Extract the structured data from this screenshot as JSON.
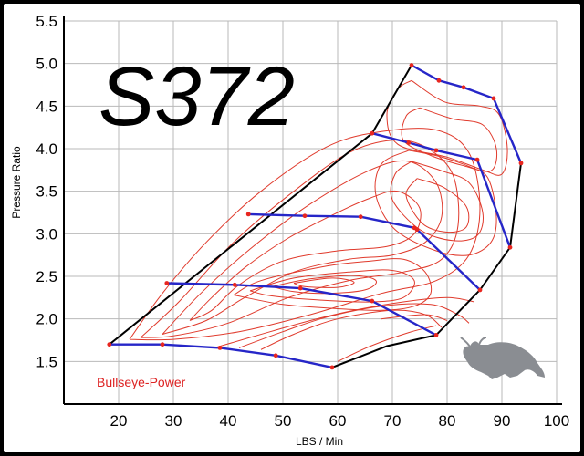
{
  "chart_data": {
    "type": "line",
    "title": "S372",
    "xlabel": "LBS / Min",
    "ylabel": "Pressure Ratio",
    "xlim": [
      10,
      100
    ],
    "ylim": [
      1.0,
      5.5
    ],
    "x_ticks": [
      "20",
      "30",
      "40",
      "50",
      "60",
      "70",
      "80",
      "90",
      "100"
    ],
    "y_ticks": [
      "1.5",
      "2.0",
      "2.5",
      "3.0",
      "3.5",
      "4.0",
      "4.5",
      "5.0",
      "5.5"
    ],
    "grid": true,
    "series": [
      {
        "role": "surge-line",
        "points": [
          [
            18.3,
            1.7
          ],
          [
            66.3,
            4.18
          ],
          [
            73.5,
            4.98
          ]
        ]
      },
      {
        "role": "choke-line",
        "points": [
          [
            93.5,
            3.83
          ],
          [
            91.5,
            2.84
          ],
          [
            86,
            2.34
          ],
          [
            78,
            1.81
          ],
          [
            69,
            1.68
          ],
          [
            59,
            1.43
          ]
        ]
      },
      {
        "role": "speed-line",
        "points": [
          [
            18.3,
            1.7
          ],
          [
            28,
            1.7
          ],
          [
            38.5,
            1.66
          ],
          [
            48.7,
            1.57
          ],
          [
            59,
            1.43
          ]
        ]
      },
      {
        "role": "speed-line",
        "points": [
          [
            28.8,
            2.42
          ],
          [
            41.2,
            2.4
          ],
          [
            53.2,
            2.36
          ],
          [
            66.3,
            2.21
          ],
          [
            78,
            1.81
          ]
        ]
      },
      {
        "role": "speed-line",
        "points": [
          [
            43.7,
            3.23
          ],
          [
            54,
            3.21
          ],
          [
            64.2,
            3.2
          ],
          [
            74,
            3.07
          ],
          [
            74.5,
            3.05
          ],
          [
            86,
            2.34
          ]
        ]
      },
      {
        "role": "speed-line",
        "points": [
          [
            66.3,
            4.18
          ],
          [
            73,
            4.07
          ],
          [
            78,
            3.98
          ],
          [
            85.5,
            3.87
          ],
          [
            91.5,
            2.84
          ]
        ]
      },
      {
        "role": "speed-line",
        "points": [
          [
            73.5,
            4.98
          ],
          [
            78.5,
            4.8
          ],
          [
            83,
            4.72
          ],
          [
            88.5,
            4.59
          ],
          [
            93.5,
            3.83
          ]
        ]
      }
    ],
    "efficiency_islands": [
      [
        [
          73.5,
          4.8
        ],
        [
          79.5,
          4.55
        ],
        [
          86,
          4.5
        ],
        [
          89.5,
          4.4
        ],
        [
          91,
          4.0
        ],
        [
          90,
          3.7
        ],
        [
          86.5,
          3.75
        ],
        [
          80,
          3.9
        ],
        [
          71,
          4.05
        ],
        [
          69,
          4.4
        ],
        [
          71,
          4.7
        ],
        [
          73.5,
          4.8
        ]
      ],
      [
        [
          75,
          4.48
        ],
        [
          81,
          4.35
        ],
        [
          86.5,
          4.28
        ],
        [
          89,
          4.0
        ],
        [
          88,
          3.74
        ],
        [
          83,
          3.8
        ],
        [
          77,
          3.92
        ],
        [
          72,
          4.1
        ],
        [
          72.5,
          4.38
        ],
        [
          75,
          4.48
        ]
      ],
      [
        [
          73,
          3.98
        ],
        [
          78.5,
          3.91
        ],
        [
          84,
          3.79
        ],
        [
          87.5,
          3.65
        ],
        [
          89,
          3.2
        ],
        [
          88,
          2.9
        ],
        [
          84,
          2.75
        ],
        [
          78,
          2.8
        ],
        [
          70.5,
          3.05
        ],
        [
          67,
          3.45
        ],
        [
          68,
          3.82
        ],
        [
          73,
          3.98
        ]
      ],
      [
        [
          73.5,
          3.85
        ],
        [
          79,
          3.74
        ],
        [
          84,
          3.6
        ],
        [
          86.5,
          3.25
        ],
        [
          85.5,
          2.98
        ],
        [
          81,
          2.92
        ],
        [
          75,
          3.05
        ],
        [
          70,
          3.4
        ],
        [
          70.5,
          3.7
        ],
        [
          73.5,
          3.85
        ]
      ],
      [
        [
          74.5,
          3.65
        ],
        [
          79.5,
          3.54
        ],
        [
          83.5,
          3.32
        ],
        [
          83.5,
          3.08
        ],
        [
          80,
          3.02
        ],
        [
          75.5,
          3.12
        ],
        [
          72.5,
          3.45
        ],
        [
          74.5,
          3.65
        ]
      ],
      [
        [
          41,
          2.28
        ],
        [
          46,
          2.45
        ],
        [
          58,
          2.62
        ],
        [
          66,
          2.68
        ],
        [
          72,
          2.7
        ],
        [
          76,
          2.55
        ],
        [
          77,
          2.3
        ],
        [
          74,
          2.15
        ],
        [
          68,
          2.1
        ],
        [
          60,
          2.12
        ],
        [
          50,
          2.17
        ],
        [
          41,
          2.28
        ]
      ],
      [
        [
          44,
          2.33
        ],
        [
          52,
          2.48
        ],
        [
          62,
          2.55
        ],
        [
          70,
          2.57
        ],
        [
          74,
          2.45
        ],
        [
          72,
          2.25
        ],
        [
          66,
          2.2
        ],
        [
          57,
          2.22
        ],
        [
          48,
          2.27
        ],
        [
          44,
          2.33
        ]
      ],
      [
        [
          48,
          2.38
        ],
        [
          55,
          2.47
        ],
        [
          63,
          2.51
        ],
        [
          67,
          2.45
        ],
        [
          65,
          2.34
        ],
        [
          58,
          2.3
        ],
        [
          52,
          2.32
        ],
        [
          48,
          2.38
        ]
      ],
      [
        [
          52,
          2.42
        ],
        [
          59,
          2.48
        ],
        [
          63,
          2.43
        ],
        [
          60,
          2.37
        ],
        [
          54,
          2.38
        ],
        [
          52,
          2.42
        ]
      ],
      [
        [
          33,
          1.98
        ],
        [
          37,
          2.25
        ],
        [
          43,
          2.6
        ],
        [
          51,
          2.95
        ],
        [
          60,
          3.25
        ],
        [
          66,
          3.42
        ],
        [
          71,
          3.5
        ],
        [
          75,
          3.3
        ],
        [
          74,
          3.0
        ],
        [
          69,
          2.85
        ],
        [
          60,
          2.8
        ],
        [
          50,
          2.68
        ],
        [
          42,
          2.4
        ],
        [
          37,
          2.1
        ],
        [
          33,
          1.98
        ]
      ],
      [
        [
          28,
          1.82
        ],
        [
          35,
          2.3
        ],
        [
          44,
          2.82
        ],
        [
          55,
          3.35
        ],
        [
          66,
          3.75
        ],
        [
          73,
          3.85
        ],
        [
          78,
          3.6
        ],
        [
          79,
          3.2
        ],
        [
          76,
          2.9
        ],
        [
          70,
          2.75
        ],
        [
          62,
          2.7
        ],
        [
          52,
          2.55
        ],
        [
          43,
          2.25
        ],
        [
          36,
          1.98
        ],
        [
          28,
          1.82
        ]
      ],
      [
        [
          24,
          1.78
        ],
        [
          31,
          2.2
        ],
        [
          41,
          2.9
        ],
        [
          52,
          3.5
        ],
        [
          62,
          3.95
        ],
        [
          70,
          4.1
        ],
        [
          76,
          4.02
        ],
        [
          81,
          3.7
        ],
        [
          82,
          3.1
        ],
        [
          79,
          2.7
        ],
        [
          72,
          2.55
        ],
        [
          62,
          2.45
        ],
        [
          51,
          2.25
        ],
        [
          40,
          1.95
        ],
        [
          30,
          1.8
        ],
        [
          24,
          1.78
        ]
      ],
      [
        [
          22,
          1.76
        ],
        [
          28,
          2.3
        ],
        [
          36,
          2.9
        ],
        [
          46,
          3.5
        ],
        [
          58,
          4.02
        ],
        [
          68,
          4.2
        ],
        [
          78,
          4.22
        ],
        [
          84,
          3.95
        ],
        [
          86,
          3.3
        ],
        [
          84,
          2.75
        ],
        [
          78,
          2.45
        ],
        [
          68,
          2.3
        ],
        [
          55,
          2.05
        ],
        [
          42,
          1.85
        ],
        [
          30,
          1.76
        ],
        [
          22,
          1.76
        ]
      ]
    ],
    "chokeside_lines": [
      [
        [
          46,
          1.64
        ],
        [
          52,
          1.82
        ],
        [
          60,
          2.0
        ],
        [
          70,
          2.1
        ],
        [
          76,
          2.05
        ],
        [
          79,
          1.9
        ]
      ],
      [
        [
          42,
          1.66
        ],
        [
          50,
          1.85
        ],
        [
          58,
          2.02
        ],
        [
          68,
          2.15
        ],
        [
          77,
          2.17
        ],
        [
          82,
          2.05
        ],
        [
          84,
          1.95
        ]
      ],
      [
        [
          60,
          1.5
        ],
        [
          66,
          1.68
        ],
        [
          73,
          1.84
        ],
        [
          78,
          1.92
        ]
      ],
      [
        [
          38,
          1.67
        ],
        [
          45,
          1.8
        ],
        [
          55,
          1.98
        ],
        [
          63,
          2.1
        ],
        [
          72,
          2.2
        ],
        [
          80,
          2.25
        ],
        [
          85,
          2.2
        ]
      ],
      [
        [
          68,
          2.0
        ],
        [
          76,
          2.05
        ],
        [
          80,
          1.98
        ]
      ]
    ],
    "annotation": "Bullseye-Power"
  }
}
